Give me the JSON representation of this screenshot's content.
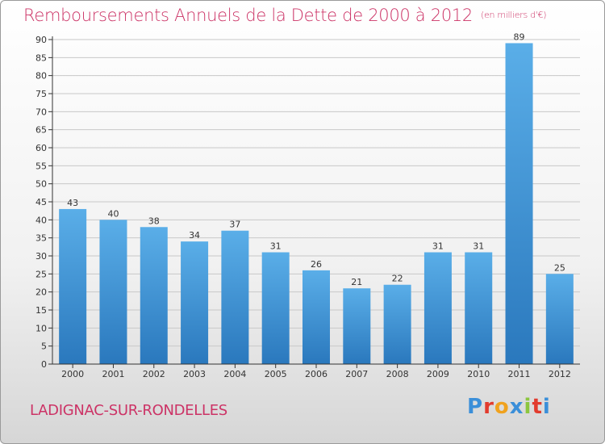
{
  "header": {
    "title": "Remboursements Annuels de la Dette de 2000 à 2012",
    "subtitle": "(en milliers d'€)"
  },
  "footer": {
    "town": "LADIGNAC-SUR-RONDELLES",
    "logo_letters": [
      "P",
      "r",
      "o",
      "x",
      "i",
      "t",
      "i"
    ],
    "logo_colors": [
      "#3b8fd9",
      "#e23b2e",
      "#f0a21e",
      "#3b8fd9",
      "#8cc63f",
      "#e23b2e",
      "#3b8fd9"
    ]
  },
  "colors": {
    "bar_light": "#5aaee8",
    "bar_dark": "#2a78bd",
    "grid": "#c8c8c8",
    "axis": "#333333"
  },
  "chart_data": {
    "type": "bar",
    "title": "Remboursements Annuels de la Dette de 2000 à 2012",
    "xlabel": "",
    "ylabel": "",
    "ylim": [
      0,
      90
    ],
    "ytick_step": 5,
    "grid": true,
    "categories": [
      "2000",
      "2001",
      "2002",
      "2003",
      "2004",
      "2005",
      "2006",
      "2007",
      "2008",
      "2009",
      "2010",
      "2011",
      "2012"
    ],
    "values": [
      43,
      40,
      38,
      34,
      37,
      31,
      26,
      21,
      22,
      31,
      31,
      89,
      25
    ]
  }
}
